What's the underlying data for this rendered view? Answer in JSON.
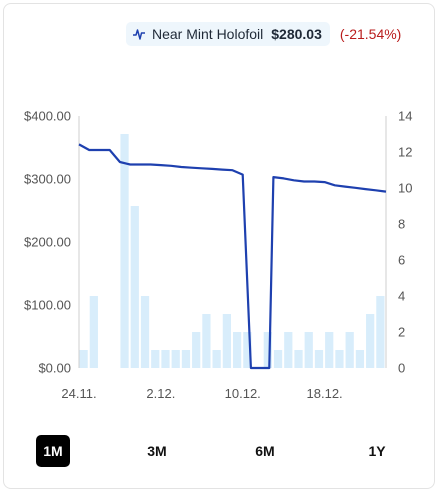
{
  "legend": {
    "icon": "price-trend-icon",
    "series_name": "Near Mint Holofoil",
    "price": "$280.03",
    "change": "(-21.54%)",
    "change_color": "#b91c1c"
  },
  "ranges": [
    "1M",
    "3M",
    "6M",
    "1Y"
  ],
  "active_range": "1M",
  "chart_data": {
    "type": "line",
    "line_color": "#1e40af",
    "bar_color": "#d8edfb",
    "left_axis": {
      "ticks": [
        "$0.00",
        "$100.00",
        "$200.00",
        "$300.00",
        "$400.00"
      ],
      "ylim": [
        0,
        400
      ]
    },
    "right_axis": {
      "ticks": [
        "0",
        "2",
        "4",
        "6",
        "8",
        "10",
        "12",
        "14"
      ],
      "ylim": [
        0,
        14
      ]
    },
    "x_ticks": [
      "24.11.",
      "2.12.",
      "10.12.",
      "18.12."
    ],
    "xlim": [
      0,
      30
    ],
    "x_tick_positions": [
      0,
      8,
      16,
      24
    ],
    "volume_bars": {
      "x": [
        0,
        1,
        4,
        5,
        6,
        7,
        8,
        9,
        10,
        11,
        12,
        13,
        14,
        15,
        16,
        18,
        19,
        20,
        21,
        22,
        23,
        24,
        25,
        26,
        27,
        28,
        29
      ],
      "values": [
        1,
        4,
        13,
        9,
        4,
        1,
        1,
        1,
        1,
        2,
        3,
        1,
        3,
        2,
        2,
        2,
        1,
        2,
        1,
        2,
        1,
        2,
        1,
        2,
        1,
        3,
        4
      ]
    },
    "price_line": {
      "x": [
        0,
        1,
        2,
        3,
        4,
        5,
        6,
        7,
        8,
        9,
        10,
        11,
        12,
        13,
        14,
        15,
        16,
        16.8,
        17,
        17.2,
        18,
        18.6,
        19,
        20,
        21,
        22,
        23,
        24,
        25,
        26,
        27,
        28,
        29,
        30
      ],
      "y": [
        355,
        346,
        346,
        346,
        327,
        323,
        323,
        323,
        322,
        321,
        319,
        318,
        317,
        316,
        315,
        314,
        307,
        0,
        0,
        0,
        0,
        0,
        303,
        301,
        298,
        296,
        296,
        295,
        290,
        288,
        286,
        284,
        282,
        280
      ]
    }
  }
}
